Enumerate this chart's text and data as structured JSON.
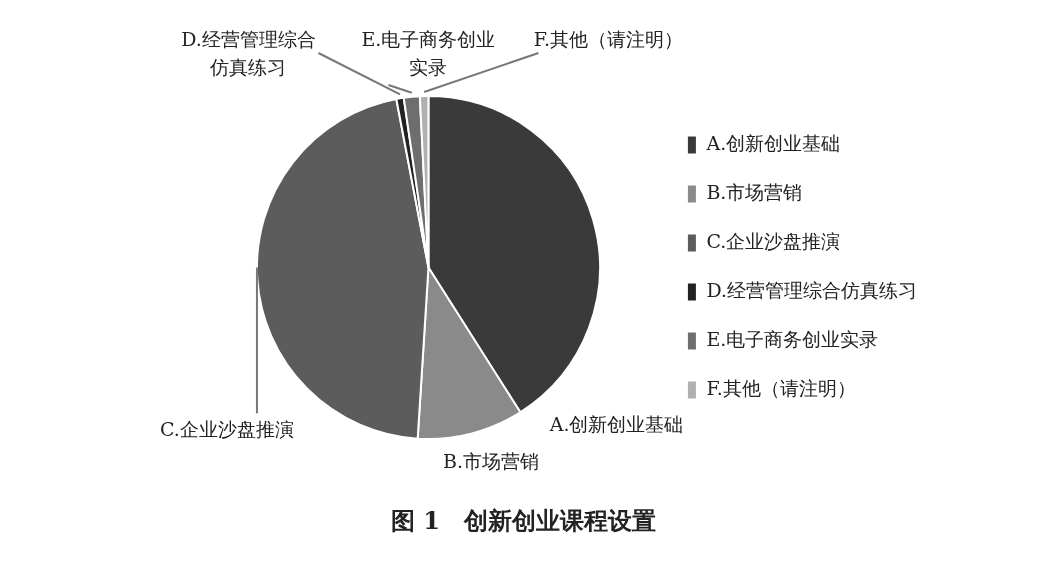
{
  "chart_data": {
    "type": "pie",
    "title": "图 1　创新创业课程设置",
    "categories": [
      "A.创新创业基础",
      "B.市场营销",
      "C.企业沙盘推演",
      "D.经营管理综合仿真练习",
      "E.电子商务创业实录",
      "F.其他（请注明）"
    ],
    "values": [
      41,
      10,
      46,
      0.7,
      1.5,
      0.8
    ],
    "colors": [
      "#3a3a3a",
      "#8a8a8a",
      "#5c5c5c",
      "#222222",
      "#6e6e6e",
      "#b0b0b0"
    ],
    "legend": "right"
  }
}
